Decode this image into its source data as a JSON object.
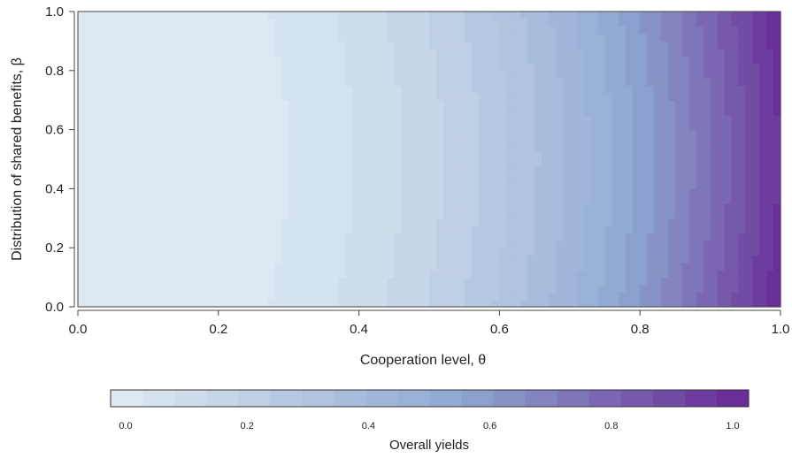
{
  "chart_data": {
    "type": "heatmap",
    "xlabel": "Cooperation level, θ",
    "ylabel": "Distribution of shared benefits, β",
    "xlim": [
      0,
      1
    ],
    "ylim": [
      0,
      1
    ],
    "x_ticks": [
      "0.0",
      "0.2",
      "0.4",
      "0.6",
      "0.8",
      "1.0"
    ],
    "y_ticks": [
      "0.0",
      "0.2",
      "0.4",
      "0.6",
      "0.8",
      "1.0"
    ],
    "z_description": "Overall yields increase with cooperation level θ; bands curve toward higher θ at mid β",
    "z_range": [
      0,
      1.05
    ],
    "colorbar": {
      "label": "Overall yields",
      "ticks": [
        "0.0",
        "0.2",
        "0.4",
        "0.6",
        "0.8",
        "1.0"
      ],
      "low_color": "#dde8f2",
      "mid_color": "#8ea8d1",
      "high_color": "#6a2e98",
      "levels": 20
    },
    "grid": false,
    "legend": "colorbar-bottom"
  }
}
